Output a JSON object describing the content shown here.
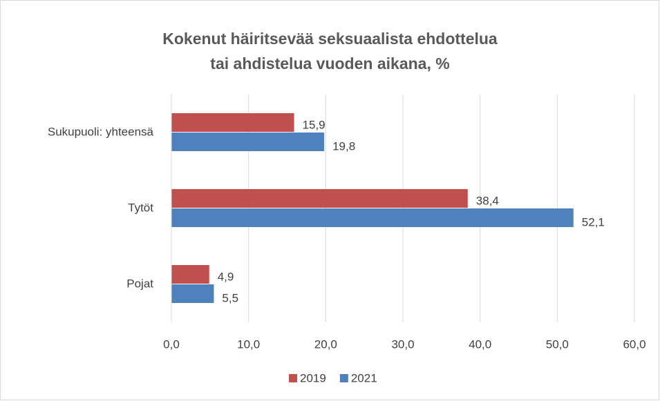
{
  "chart_data": {
    "type": "hbar",
    "title": "Kokenut häiritsevää seksuaalista ehdottelua tai ahdistelua vuoden aikana, %",
    "categories": [
      "Sukupuoli: yhteensä",
      "Tytöt",
      "Pojat"
    ],
    "series": [
      {
        "name": "2019",
        "color": "#c0504d",
        "values": [
          15.9,
          38.4,
          4.9
        ],
        "value_labels": [
          "15,9",
          "38,4",
          "4,9"
        ]
      },
      {
        "name": "2021",
        "color": "#4f81bd",
        "values": [
          19.8,
          52.1,
          5.5
        ],
        "value_labels": [
          "19,8",
          "52,1",
          "5,5"
        ]
      }
    ],
    "xlim": [
      0,
      60
    ],
    "xticks": [
      {
        "value": 0,
        "label": "0,0"
      },
      {
        "value": 10,
        "label": "10,0"
      },
      {
        "value": 20,
        "label": "20,0"
      },
      {
        "value": 30,
        "label": "30,0"
      },
      {
        "value": 40,
        "label": "40,0"
      },
      {
        "value": 50,
        "label": "50,0"
      },
      {
        "value": 60,
        "label": "60,0"
      }
    ],
    "grid": true,
    "legend": "bottom"
  }
}
